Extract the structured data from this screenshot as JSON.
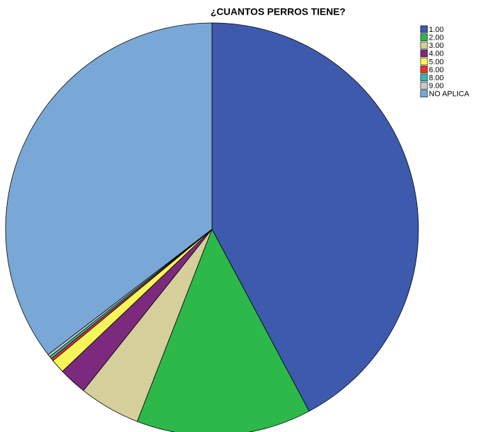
{
  "chart_data": {
    "type": "pie",
    "title": "¿CUANTOS PERROS TIENE?",
    "categories": [
      "1.00",
      "2.00",
      "3.00",
      "4.00",
      "5.00",
      "6.00",
      "8.00",
      "9.00",
      "NO APLICA"
    ],
    "values": [
      42.2,
      13.7,
      4.8,
      2.2,
      1.1,
      0.2,
      0.2,
      0.2,
      35.4
    ],
    "colors": [
      "#3d5aad",
      "#2db84a",
      "#d5cf9b",
      "#7b2a7e",
      "#f8f55a",
      "#e8352b",
      "#39b6b6",
      "#c8c8c8",
      "#79a8d6"
    ],
    "legend": "right"
  }
}
